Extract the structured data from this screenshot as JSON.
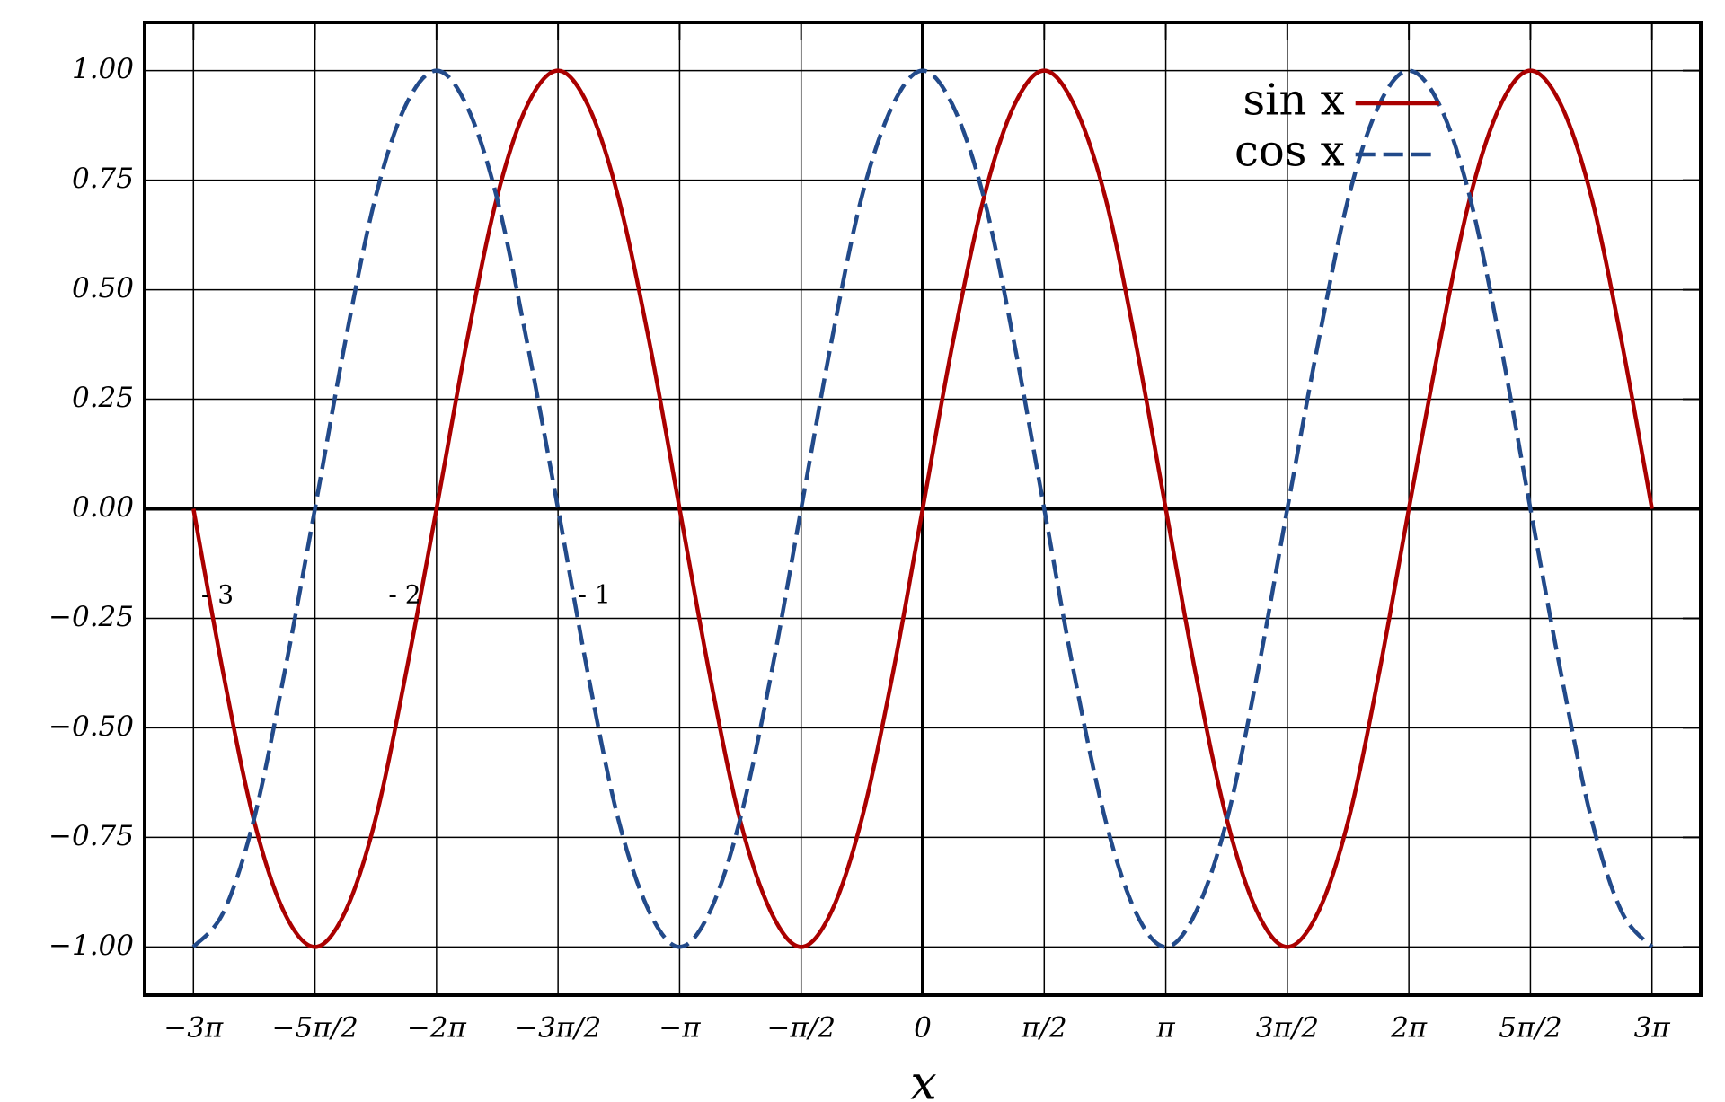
{
  "chart_data": {
    "type": "line",
    "xlabel": "x",
    "x": [
      -9.42,
      -9.03,
      -8.64,
      -8.25,
      -7.85,
      -7.46,
      -7.07,
      -6.68,
      -6.28,
      -5.89,
      -5.5,
      -5.11,
      -4.71,
      -4.32,
      -3.93,
      -3.53,
      -3.14,
      -2.75,
      -2.36,
      -1.96,
      -1.57,
      -1.18,
      -0.79,
      -0.39,
      0,
      0.39,
      0.79,
      1.18,
      1.57,
      1.96,
      2.36,
      2.75,
      3.14,
      3.53,
      3.93,
      4.32,
      4.71,
      5.11,
      5.5,
      5.89,
      6.28,
      6.68,
      7.07,
      7.46,
      7.85,
      8.25,
      8.64,
      9.03,
      9.42
    ],
    "series": [
      {
        "name": "sin x",
        "color": "#aa0000",
        "line_style": "solid",
        "values": [
          0,
          -0.38,
          -0.71,
          -0.92,
          -1,
          -0.92,
          -0.71,
          -0.38,
          0,
          0.38,
          0.71,
          0.92,
          1,
          0.92,
          0.71,
          0.38,
          0,
          -0.38,
          -0.71,
          -0.92,
          -1,
          -0.92,
          -0.71,
          -0.38,
          0,
          0.38,
          0.71,
          0.92,
          1,
          0.92,
          0.71,
          0.38,
          0,
          -0.38,
          -0.71,
          -0.92,
          -1,
          -0.92,
          -0.71,
          -0.38,
          0,
          0.38,
          0.71,
          0.92,
          1,
          0.92,
          0.71,
          0.38,
          0
        ]
      },
      {
        "name": "cos x",
        "color": "#224a8a",
        "line_style": "dashed",
        "values": [
          -1,
          -0.92,
          -0.71,
          -0.38,
          0,
          0.38,
          0.71,
          0.92,
          1,
          0.92,
          0.71,
          0.38,
          0,
          -0.38,
          -0.71,
          -0.92,
          -1,
          -0.92,
          -0.71,
          -0.38,
          0,
          0.38,
          0.71,
          0.92,
          1,
          0.92,
          0.71,
          0.38,
          0,
          -0.38,
          -0.71,
          -0.92,
          -1,
          -0.92,
          -0.71,
          -0.38,
          0,
          0.38,
          0.71,
          0.92,
          1,
          0.92,
          0.71,
          0.38,
          0,
          -0.38,
          -0.71,
          -0.92,
          -1
        ]
      }
    ],
    "xlim": [
      -10.05,
      10.05
    ],
    "ylim": [
      -1.11,
      1.11
    ],
    "xticks": [
      {
        "value": -9.42,
        "label": "−3π"
      },
      {
        "value": -7.85,
        "label": "−5π/2"
      },
      {
        "value": -6.28,
        "label": "−2π"
      },
      {
        "value": -4.71,
        "label": "−3π/2"
      },
      {
        "value": -3.14,
        "label": "−π"
      },
      {
        "value": -1.57,
        "label": "−π/2"
      },
      0,
      {
        "value": 1.57,
        "label": "π/2"
      },
      {
        "value": 3.14,
        "label": "π"
      },
      {
        "value": 4.71,
        "label": "3π/2"
      },
      {
        "value": 6.28,
        "label": "2π"
      },
      {
        "value": 7.85,
        "label": "5π/2"
      },
      {
        "value": 9.42,
        "label": "3π"
      }
    ],
    "yticks": [
      {
        "value": -1,
        "label": "−1.00"
      },
      {
        "value": -0.75,
        "label": "−0.75"
      },
      {
        "value": -0.5,
        "label": "−0.50"
      },
      {
        "value": -0.25,
        "label": "−0.25"
      },
      {
        "value": 0,
        "label": "0.00"
      },
      {
        "value": 0.25,
        "label": "0.25"
      },
      {
        "value": 0.5,
        "label": "0.50"
      },
      {
        "value": 0.75,
        "label": "0.75"
      },
      {
        "value": 1,
        "label": "1.00"
      }
    ],
    "grid": true,
    "zero_lines": true,
    "legend": "upper right",
    "annotations": [
      {
        "text": "- 3",
        "x": -9.32,
        "y": -0.2
      },
      {
        "text": "- 2",
        "x": -6.9,
        "y": -0.2
      },
      {
        "text": "- 1",
        "x": -4.45,
        "y": -0.2
      }
    ]
  }
}
